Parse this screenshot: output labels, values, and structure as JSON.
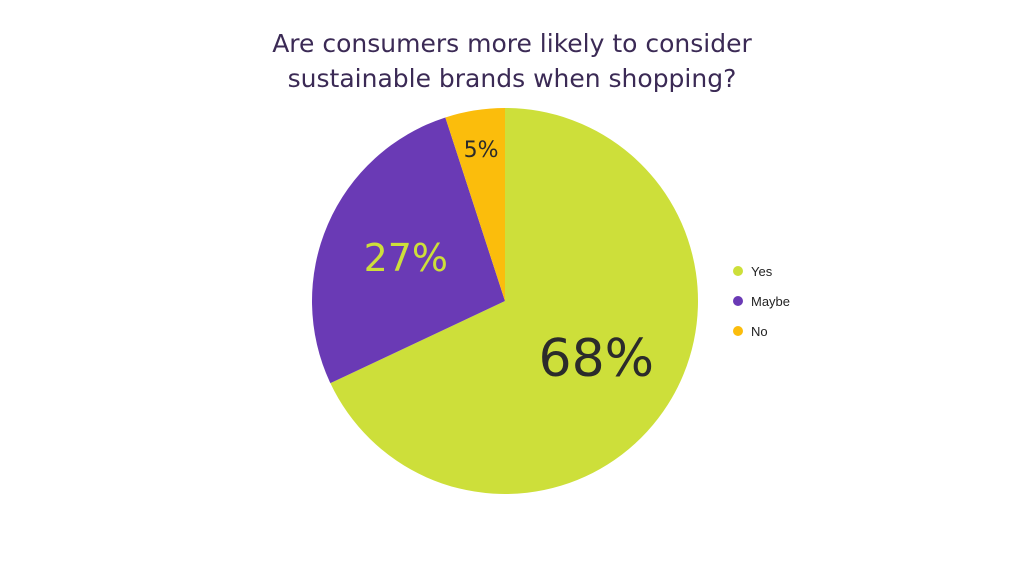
{
  "chart_data": {
    "type": "pie",
    "title_lines": [
      "Are consumers more likely to consider",
      "sustainable brands when shopping?"
    ],
    "slices": [
      {
        "name": "Yes",
        "value": 68,
        "label": "68%",
        "color": "#cddf3a",
        "label_color": "#2b2b2b"
      },
      {
        "name": "Maybe",
        "value": 27,
        "label": "27%",
        "color": "#6a3ab5",
        "label_color": "#cddf3a"
      },
      {
        "name": "No",
        "value": 5,
        "label": "5%",
        "color": "#fbbd0c",
        "label_color": "#2b2b2b"
      }
    ],
    "legend_position": "right",
    "start": "top",
    "direction": "clockwise"
  }
}
